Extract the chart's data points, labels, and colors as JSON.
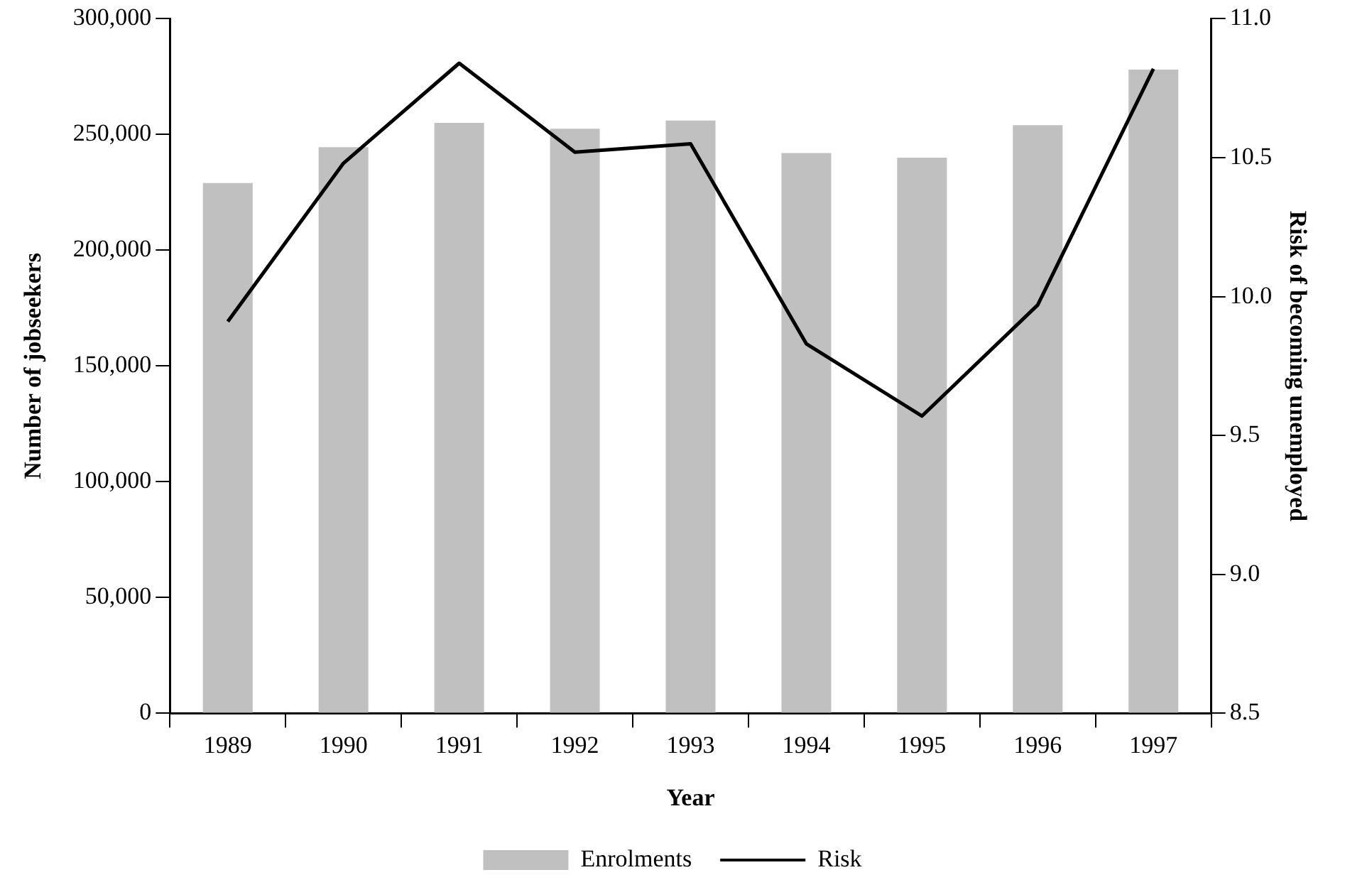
{
  "chart_data": {
    "type": "bar",
    "xlabel": "Year",
    "ylabel": "Number of jobseekers",
    "y2label": "Risk of becoming unemployed",
    "categories": [
      "1989",
      "1990",
      "1991",
      "1992",
      "1993",
      "1994",
      "1995",
      "1996",
      "1997"
    ],
    "series": [
      {
        "name": "Enrolments",
        "color": "#c0c0c0",
        "values": [
          229000,
          244500,
          255000,
          252500,
          256000,
          242000,
          240000,
          254000,
          278000
        ]
      },
      {
        "name": "Risk",
        "type": "line",
        "axis": "y2",
        "color": "#000000",
        "marker": "none",
        "values": [
          9.91,
          10.48,
          10.84,
          10.52,
          10.55,
          9.83,
          9.57,
          9.97,
          10.82
        ]
      }
    ],
    "ylim": [
      0,
      300000
    ],
    "yticks": [
      0,
      {
        "value": 50000,
        "label": "50,000"
      },
      {
        "value": 100000,
        "label": "100,000"
      },
      {
        "value": 150000,
        "label": "150,000"
      },
      {
        "value": 200000,
        "label": "200,000"
      },
      {
        "value": 250000,
        "label": "250,000"
      },
      {
        "value": 300000,
        "label": "300,000"
      }
    ],
    "y2lim": [
      8.5,
      11
    ],
    "y2ticks": [
      8.5,
      {
        "value": 9,
        "label": "9.0"
      },
      9.5,
      {
        "value": 10,
        "label": "10.0"
      },
      10.5,
      {
        "value": 11,
        "label": "11.0"
      }
    ],
    "grid": false,
    "legend": "bottom"
  }
}
